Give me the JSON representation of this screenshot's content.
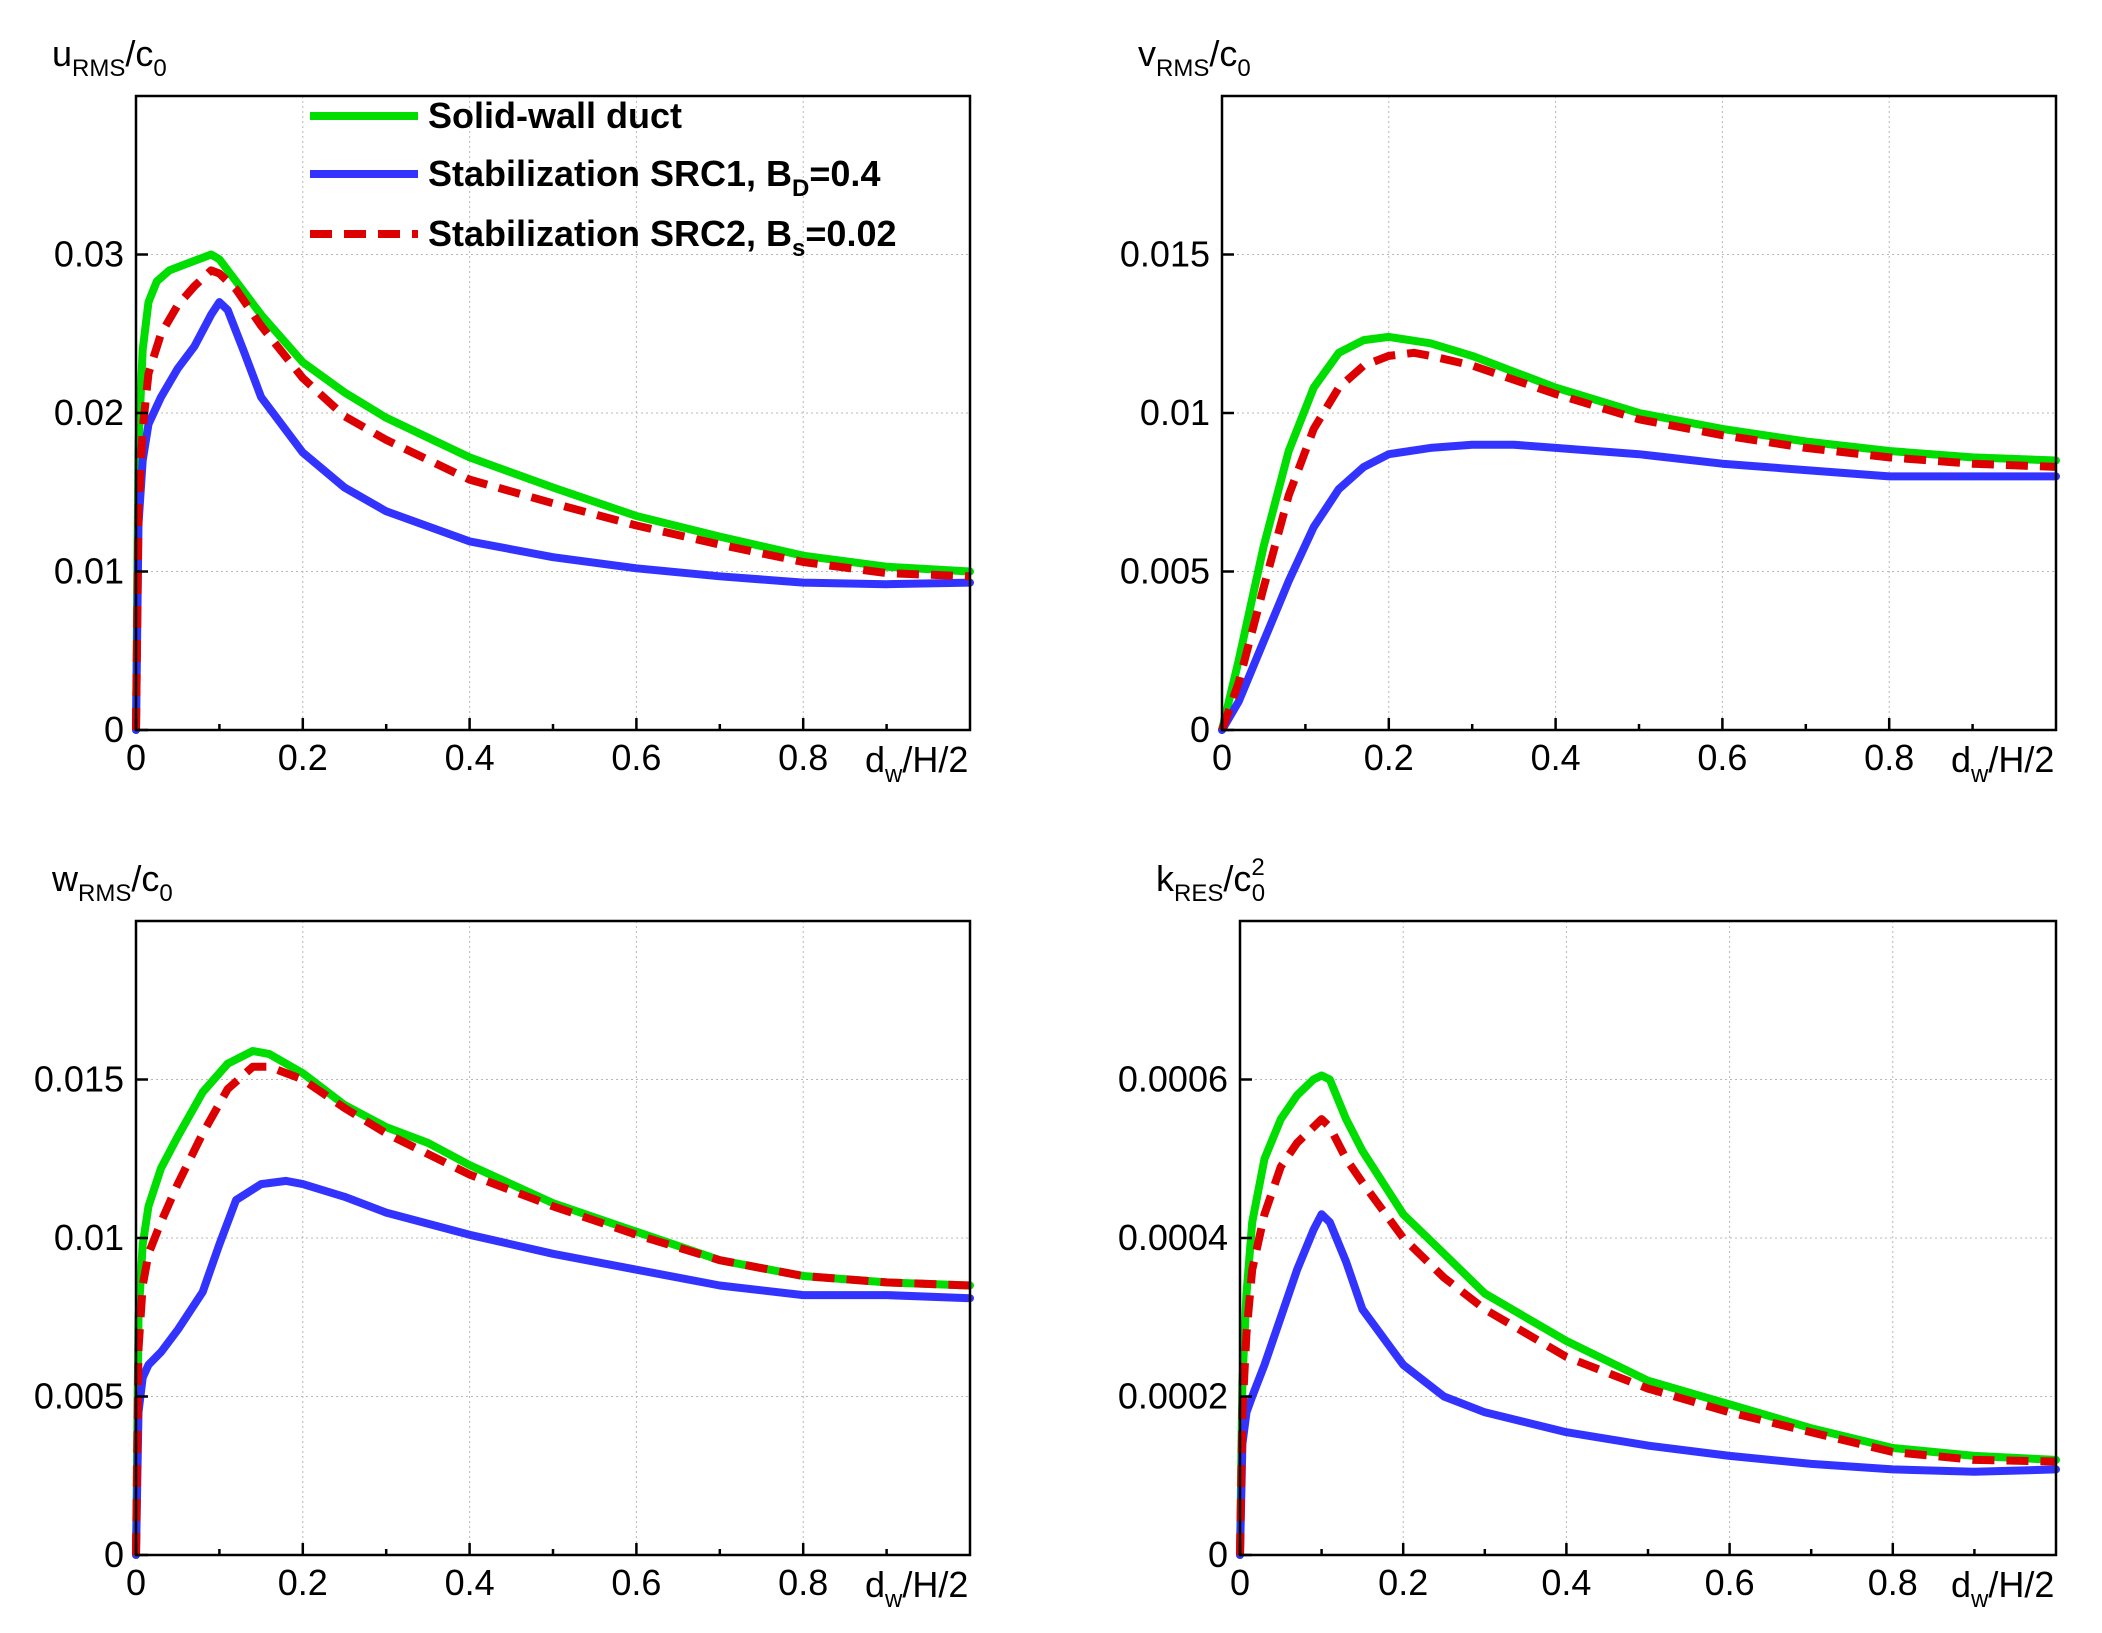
{
  "chart_data": [
    {
      "id": "u",
      "type": "line",
      "title": "",
      "ylabel": {
        "main": "u",
        "sub": "RMS",
        "rest": "/c",
        "sub2": "0",
        "sup": ""
      },
      "xlabel": {
        "main": "d",
        "sub": "w",
        "rest": "/H/2"
      },
      "xlim": [
        0,
        1
      ],
      "ylim": [
        0,
        0.04
      ],
      "xticks": [
        0,
        0.2,
        0.4,
        0.6,
        0.8
      ],
      "xtick_labels": [
        "0",
        "0.2",
        "0.4",
        "0.6",
        "0.8"
      ],
      "yticks": [
        0,
        0.01,
        0.02,
        0.03
      ],
      "ytick_labels": [
        "0",
        "0.01",
        "0.02",
        "0.03"
      ],
      "grid": true,
      "legend": true,
      "series": [
        {
          "name": "Solid-wall duct",
          "x": [
            0,
            0.003,
            0.008,
            0.015,
            0.025,
            0.04,
            0.06,
            0.08,
            0.09,
            0.1,
            0.12,
            0.15,
            0.2,
            0.25,
            0.3,
            0.4,
            0.5,
            0.6,
            0.7,
            0.8,
            0.9,
            1.0
          ],
          "values": [
            0,
            0.018,
            0.024,
            0.027,
            0.0283,
            0.029,
            0.0294,
            0.0298,
            0.03,
            0.0297,
            0.0283,
            0.0262,
            0.0232,
            0.0213,
            0.0197,
            0.0172,
            0.0153,
            0.0135,
            0.0122,
            0.011,
            0.0103,
            0.01
          ]
        },
        {
          "name": "Stabilization SRC1, B_D=0.4",
          "x": [
            0,
            0.003,
            0.008,
            0.015,
            0.03,
            0.05,
            0.07,
            0.09,
            0.1,
            0.11,
            0.13,
            0.15,
            0.2,
            0.25,
            0.3,
            0.4,
            0.5,
            0.6,
            0.7,
            0.8,
            0.9,
            1.0
          ],
          "values": [
            0,
            0.013,
            0.017,
            0.0193,
            0.021,
            0.0228,
            0.0242,
            0.0262,
            0.027,
            0.0265,
            0.0238,
            0.021,
            0.0175,
            0.0153,
            0.0138,
            0.0119,
            0.0109,
            0.0102,
            0.0097,
            0.0093,
            0.0092,
            0.0093
          ]
        },
        {
          "name": "Stabilization SRC2, B_s=0.02",
          "x": [
            0,
            0.003,
            0.008,
            0.015,
            0.03,
            0.05,
            0.07,
            0.09,
            0.1,
            0.12,
            0.15,
            0.2,
            0.25,
            0.3,
            0.4,
            0.5,
            0.6,
            0.7,
            0.8,
            0.9,
            1.0
          ],
          "values": [
            0,
            0.014,
            0.019,
            0.0225,
            0.025,
            0.0268,
            0.028,
            0.029,
            0.0288,
            0.0278,
            0.0255,
            0.0222,
            0.0198,
            0.0183,
            0.0158,
            0.0143,
            0.0129,
            0.0117,
            0.0106,
            0.0099,
            0.0097
          ]
        }
      ]
    },
    {
      "id": "v",
      "type": "line",
      "title": "",
      "ylabel": {
        "main": "v",
        "sub": "RMS",
        "rest": "/c",
        "sub2": "0",
        "sup": ""
      },
      "xlabel": {
        "main": "d",
        "sub": "w",
        "rest": "/H/2"
      },
      "xlim": [
        0,
        1
      ],
      "ylim": [
        0,
        0.02
      ],
      "xticks": [
        0,
        0.2,
        0.4,
        0.6,
        0.8
      ],
      "xtick_labels": [
        "0",
        "0.2",
        "0.4",
        "0.6",
        "0.8"
      ],
      "yticks": [
        0,
        0.005,
        0.01,
        0.015
      ],
      "ytick_labels": [
        "0",
        "0.005",
        "0.01",
        "0.015"
      ],
      "grid": true,
      "legend": false,
      "series": [
        {
          "name": "Solid-wall duct",
          "x": [
            0,
            0.02,
            0.05,
            0.08,
            0.11,
            0.14,
            0.17,
            0.2,
            0.25,
            0.3,
            0.4,
            0.5,
            0.6,
            0.7,
            0.8,
            0.9,
            1.0
          ],
          "values": [
            0,
            0.0022,
            0.0058,
            0.0088,
            0.0108,
            0.0119,
            0.0123,
            0.0124,
            0.0122,
            0.0118,
            0.0108,
            0.01,
            0.0095,
            0.0091,
            0.0088,
            0.0086,
            0.0085
          ]
        },
        {
          "name": "Stabilization SRC1, B_D=0.4",
          "x": [
            0,
            0.02,
            0.05,
            0.08,
            0.11,
            0.14,
            0.17,
            0.2,
            0.25,
            0.3,
            0.35,
            0.4,
            0.5,
            0.6,
            0.7,
            0.8,
            0.9,
            1.0
          ],
          "values": [
            0,
            0.0009,
            0.0028,
            0.0047,
            0.0064,
            0.0076,
            0.0083,
            0.0087,
            0.0089,
            0.009,
            0.009,
            0.0089,
            0.0087,
            0.0084,
            0.0082,
            0.008,
            0.008,
            0.008
          ]
        },
        {
          "name": "Stabilization SRC2, B_s=0.02",
          "x": [
            0,
            0.02,
            0.05,
            0.08,
            0.11,
            0.14,
            0.17,
            0.2,
            0.23,
            0.25,
            0.3,
            0.4,
            0.5,
            0.6,
            0.7,
            0.8,
            0.9,
            1.0
          ],
          "values": [
            0,
            0.0015,
            0.0045,
            0.0074,
            0.0095,
            0.0108,
            0.0115,
            0.0118,
            0.0119,
            0.0118,
            0.0115,
            0.0106,
            0.0098,
            0.0093,
            0.0089,
            0.0086,
            0.0084,
            0.0083
          ]
        }
      ]
    },
    {
      "id": "w",
      "type": "line",
      "title": "",
      "ylabel": {
        "main": "w",
        "sub": "RMS",
        "rest": "/c",
        "sub2": "0",
        "sup": ""
      },
      "xlabel": {
        "main": "d",
        "sub": "w",
        "rest": "/H/2"
      },
      "xlim": [
        0,
        1
      ],
      "ylim": [
        0,
        0.02
      ],
      "xticks": [
        0,
        0.2,
        0.4,
        0.6,
        0.8
      ],
      "xtick_labels": [
        "0",
        "0.2",
        "0.4",
        "0.6",
        "0.8"
      ],
      "yticks": [
        0,
        0.005,
        0.01,
        0.015
      ],
      "ytick_labels": [
        "0",
        "0.005",
        "0.01",
        "0.015"
      ],
      "grid": true,
      "legend": false,
      "series": [
        {
          "name": "Solid-wall duct",
          "x": [
            0,
            0.003,
            0.008,
            0.015,
            0.03,
            0.05,
            0.08,
            0.11,
            0.14,
            0.16,
            0.2,
            0.25,
            0.3,
            0.35,
            0.4,
            0.5,
            0.6,
            0.7,
            0.8,
            0.9,
            1.0
          ],
          "values": [
            0,
            0.0075,
            0.0098,
            0.011,
            0.0122,
            0.0132,
            0.0146,
            0.0155,
            0.0159,
            0.0158,
            0.0152,
            0.0142,
            0.0135,
            0.013,
            0.0123,
            0.0111,
            0.0102,
            0.0093,
            0.0088,
            0.0086,
            0.0085
          ]
        },
        {
          "name": "Stabilization SRC1, B_D=0.4",
          "x": [
            0,
            0.003,
            0.008,
            0.015,
            0.03,
            0.05,
            0.08,
            0.1,
            0.12,
            0.15,
            0.18,
            0.2,
            0.25,
            0.3,
            0.4,
            0.5,
            0.6,
            0.7,
            0.8,
            0.9,
            1.0
          ],
          "values": [
            0,
            0.0045,
            0.0056,
            0.006,
            0.0064,
            0.0071,
            0.0083,
            0.0098,
            0.0112,
            0.0117,
            0.0118,
            0.0117,
            0.0113,
            0.0108,
            0.0101,
            0.0095,
            0.009,
            0.0085,
            0.0082,
            0.0082,
            0.0081
          ]
        },
        {
          "name": "Stabilization SRC2, B_s=0.02",
          "x": [
            0,
            0.003,
            0.008,
            0.015,
            0.03,
            0.05,
            0.08,
            0.11,
            0.14,
            0.16,
            0.2,
            0.25,
            0.3,
            0.4,
            0.5,
            0.6,
            0.7,
            0.8,
            0.9,
            1.0
          ],
          "values": [
            0,
            0.0065,
            0.0085,
            0.0095,
            0.0105,
            0.0117,
            0.0133,
            0.0147,
            0.0154,
            0.0154,
            0.015,
            0.0141,
            0.0133,
            0.012,
            0.011,
            0.0101,
            0.0093,
            0.0088,
            0.0086,
            0.0085
          ]
        }
      ]
    },
    {
      "id": "k",
      "type": "line",
      "title": "",
      "ylabel": {
        "main": "k",
        "sub": "RES",
        "rest": "/c",
        "sub2": "0",
        "sup": "2"
      },
      "xlabel": {
        "main": "d",
        "sub": "w",
        "rest": "/H/2"
      },
      "xlim": [
        0,
        1
      ],
      "ylim": [
        0,
        0.0008
      ],
      "xticks": [
        0,
        0.2,
        0.4,
        0.6,
        0.8
      ],
      "xtick_labels": [
        "0",
        "0.2",
        "0.4",
        "0.6",
        "0.8"
      ],
      "yticks": [
        0,
        0.0002,
        0.0004,
        0.0006
      ],
      "ytick_labels": [
        "0",
        "0.0002",
        "0.0004",
        "0.0006"
      ],
      "grid": true,
      "legend": false,
      "series": [
        {
          "name": "Solid-wall duct",
          "x": [
            0,
            0.003,
            0.008,
            0.015,
            0.03,
            0.05,
            0.07,
            0.09,
            0.1,
            0.11,
            0.13,
            0.15,
            0.2,
            0.25,
            0.3,
            0.4,
            0.5,
            0.6,
            0.7,
            0.8,
            0.9,
            1.0
          ],
          "values": [
            0,
            0.00022,
            0.00033,
            0.00042,
            0.0005,
            0.00055,
            0.00058,
            0.0006,
            0.000605,
            0.0006,
            0.00055,
            0.00051,
            0.00043,
            0.00038,
            0.00033,
            0.00027,
            0.00022,
            0.00019,
            0.00016,
            0.000135,
            0.000125,
            0.00012
          ]
        },
        {
          "name": "Stabilization SRC1, B_D=0.4",
          "x": [
            0,
            0.003,
            0.008,
            0.015,
            0.03,
            0.05,
            0.07,
            0.09,
            0.1,
            0.11,
            0.13,
            0.15,
            0.2,
            0.25,
            0.3,
            0.4,
            0.5,
            0.6,
            0.7,
            0.8,
            0.9,
            1.0
          ],
          "values": [
            0,
            0.00014,
            0.00018,
            0.0002,
            0.00024,
            0.0003,
            0.00036,
            0.00041,
            0.00043,
            0.00042,
            0.00037,
            0.00031,
            0.00024,
            0.0002,
            0.00018,
            0.000155,
            0.000138,
            0.000125,
            0.000115,
            0.000108,
            0.000105,
            0.000108
          ]
        },
        {
          "name": "Stabilization SRC2, B_s=0.02",
          "x": [
            0,
            0.003,
            0.008,
            0.015,
            0.03,
            0.05,
            0.07,
            0.09,
            0.1,
            0.11,
            0.13,
            0.15,
            0.2,
            0.25,
            0.3,
            0.4,
            0.5,
            0.6,
            0.7,
            0.8,
            0.9,
            1.0
          ],
          "values": [
            0,
            0.00018,
            0.00028,
            0.00036,
            0.00043,
            0.00049,
            0.00052,
            0.00054,
            0.00055,
            0.00054,
            0.0005,
            0.00047,
            0.0004,
            0.00035,
            0.00031,
            0.00025,
            0.00021,
            0.00018,
            0.000155,
            0.00013,
            0.00012,
            0.000118
          ]
        }
      ]
    }
  ],
  "legend": {
    "entries": [
      {
        "color": "#00dd00",
        "dashed": false,
        "label": "Solid-wall duct",
        "sub": "",
        "tail": ""
      },
      {
        "color": "#3333ff",
        "dashed": false,
        "label": "Stabilization SRC1, B",
        "sub": "D",
        "tail": "=0.4"
      },
      {
        "color": "#dd0000",
        "dashed": true,
        "label": "Stabilization SRC2, B",
        "sub": "s",
        "tail": "=0.02"
      }
    ]
  },
  "colors": {
    "series": [
      "#00dd00",
      "#3333ff",
      "#dd0000"
    ]
  }
}
